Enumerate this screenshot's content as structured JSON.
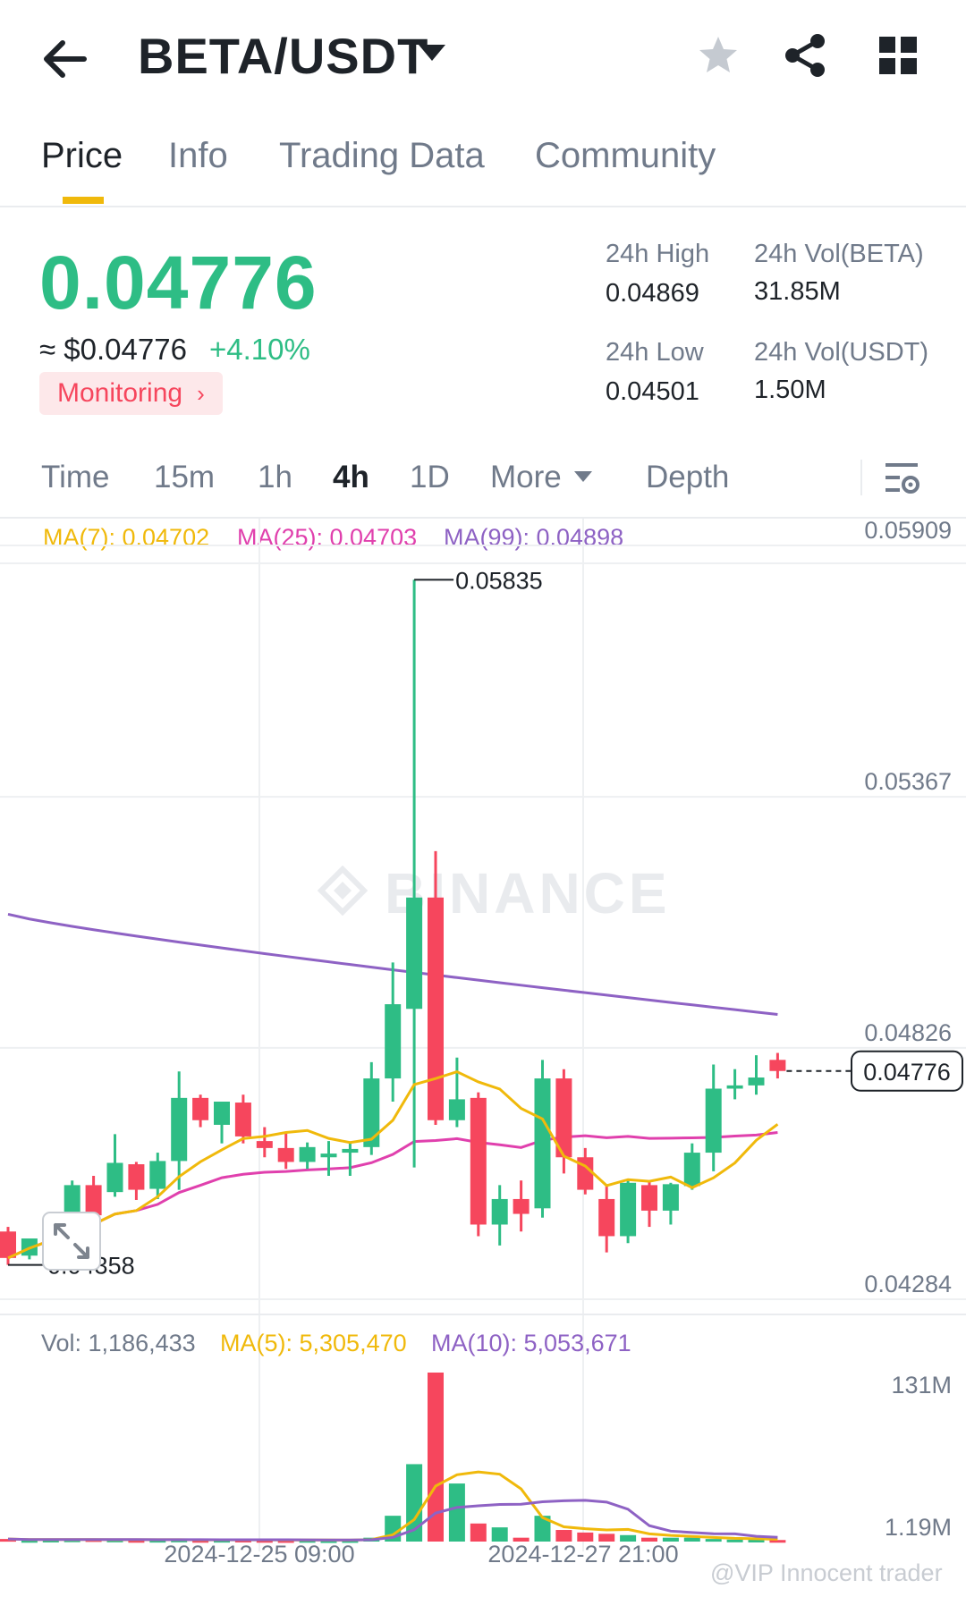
{
  "header": {
    "pair": "BETA/USDT",
    "icons": [
      "back-arrow-icon",
      "caret-down-icon",
      "star-icon",
      "share-icon",
      "grid-icon"
    ]
  },
  "tabs": [
    {
      "label": "Price",
      "active": true
    },
    {
      "label": "Info",
      "active": false
    },
    {
      "label": "Trading Data",
      "active": false
    },
    {
      "label": "Community",
      "active": false
    }
  ],
  "price": {
    "last": "0.04776",
    "usd": "≈ $0.04776",
    "change": "+4.10%",
    "badge": "Monitoring",
    "color_up": "#2ebd85",
    "color_down": "#f6465d"
  },
  "stats": {
    "high_label": "24h High",
    "high_value": "0.04869",
    "low_label": "24h Low",
    "low_value": "0.04501",
    "vol_beta_label": "24h Vol(BETA)",
    "vol_beta_value": "31.85M",
    "vol_usdt_label": "24h Vol(USDT)",
    "vol_usdt_value": "1.50M"
  },
  "intervals": [
    {
      "label": "Time",
      "active": false
    },
    {
      "label": "15m",
      "active": false
    },
    {
      "label": "1h",
      "active": false
    },
    {
      "label": "4h",
      "active": true
    },
    {
      "label": "1D",
      "active": false
    },
    {
      "label": "More",
      "active": false
    },
    {
      "label": "Depth",
      "active": false
    }
  ],
  "ma_legend": {
    "ma7": "MA(7): 0.04702",
    "ma25": "MA(25): 0.04703",
    "ma99": "MA(99): 0.04898",
    "ma7_color": "#f0b90b",
    "ma25_color": "#e040ad",
    "ma99_color": "#8e62c4"
  },
  "vol_legend": {
    "vol": "Vol: 1,186,433",
    "ma5": "MA(5): 5,305,470",
    "ma10": "MA(10): 5,053,671"
  },
  "watermark": "BINANCE",
  "footer_credit": "@VIP Innocent trader",
  "chart_data": {
    "type": "candlestick",
    "interval": "4h",
    "price_axis": {
      "ticks": [
        "0.05909",
        "0.05367",
        "0.04826",
        "0.04284"
      ],
      "ylim": [
        0.04284,
        0.05909
      ]
    },
    "volume_axis": {
      "ticks": [
        "131M",
        "1.19M"
      ]
    },
    "x_ticks": [
      "2024-12-25 09:00",
      "2024-12-27 21:00"
    ],
    "annotations": {
      "max": "0.05835",
      "min": "0.04358",
      "last": "0.04776"
    },
    "candles": [
      {
        "o": 0.0443,
        "h": 0.0444,
        "l": 0.04358,
        "c": 0.04373
      },
      {
        "o": 0.04378,
        "h": 0.0441,
        "l": 0.0437,
        "c": 0.04415
      },
      {
        "o": 0.04412,
        "h": 0.0444,
        "l": 0.04395,
        "c": 0.04445
      },
      {
        "o": 0.04445,
        "h": 0.0454,
        "l": 0.0441,
        "c": 0.0453
      },
      {
        "o": 0.0453,
        "h": 0.0455,
        "l": 0.0446,
        "c": 0.04465
      },
      {
        "o": 0.04515,
        "h": 0.0464,
        "l": 0.04505,
        "c": 0.04578
      },
      {
        "o": 0.04575,
        "h": 0.0458,
        "l": 0.04498,
        "c": 0.0452
      },
      {
        "o": 0.04522,
        "h": 0.046,
        "l": 0.045,
        "c": 0.04582
      },
      {
        "o": 0.04582,
        "h": 0.04775,
        "l": 0.0452,
        "c": 0.04718
      },
      {
        "o": 0.04718,
        "h": 0.04725,
        "l": 0.04655,
        "c": 0.0467
      },
      {
        "o": 0.0466,
        "h": 0.0471,
        "l": 0.0462,
        "c": 0.0471
      },
      {
        "o": 0.04708,
        "h": 0.04725,
        "l": 0.0462,
        "c": 0.04635
      },
      {
        "o": 0.04625,
        "h": 0.04655,
        "l": 0.0459,
        "c": 0.0461
      },
      {
        "o": 0.0461,
        "h": 0.04645,
        "l": 0.04565,
        "c": 0.0458
      },
      {
        "o": 0.0458,
        "h": 0.04622,
        "l": 0.04565,
        "c": 0.04612
      },
      {
        "o": 0.0459,
        "h": 0.04625,
        "l": 0.0455,
        "c": 0.04598
      },
      {
        "o": 0.046,
        "h": 0.0462,
        "l": 0.0455,
        "c": 0.04608
      },
      {
        "o": 0.04612,
        "h": 0.04795,
        "l": 0.04595,
        "c": 0.0476
      },
      {
        "o": 0.0476,
        "h": 0.0501,
        "l": 0.0471,
        "c": 0.0492
      },
      {
        "o": 0.0491,
        "h": 0.05835,
        "l": 0.04568,
        "c": 0.0515
      },
      {
        "o": 0.0515,
        "h": 0.0525,
        "l": 0.0466,
        "c": 0.0467
      },
      {
        "o": 0.0467,
        "h": 0.04805,
        "l": 0.04655,
        "c": 0.04715
      },
      {
        "o": 0.04718,
        "h": 0.0473,
        "l": 0.0442,
        "c": 0.04445
      },
      {
        "o": 0.04445,
        "h": 0.0453,
        "l": 0.044,
        "c": 0.045
      },
      {
        "o": 0.045,
        "h": 0.0454,
        "l": 0.0443,
        "c": 0.04468
      },
      {
        "o": 0.0448,
        "h": 0.048,
        "l": 0.0446,
        "c": 0.0476
      },
      {
        "o": 0.0476,
        "h": 0.0478,
        "l": 0.04555,
        "c": 0.0459
      },
      {
        "o": 0.0459,
        "h": 0.0461,
        "l": 0.0451,
        "c": 0.0452
      },
      {
        "o": 0.045,
        "h": 0.0453,
        "l": 0.04385,
        "c": 0.0442
      },
      {
        "o": 0.0442,
        "h": 0.0454,
        "l": 0.04405,
        "c": 0.04535
      },
      {
        "o": 0.0453,
        "h": 0.0454,
        "l": 0.0444,
        "c": 0.04475
      },
      {
        "o": 0.04475,
        "h": 0.04535,
        "l": 0.04445,
        "c": 0.04532
      },
      {
        "o": 0.04528,
        "h": 0.0462,
        "l": 0.0452,
        "c": 0.046
      },
      {
        "o": 0.046,
        "h": 0.0479,
        "l": 0.0456,
        "c": 0.04738
      },
      {
        "o": 0.04738,
        "h": 0.0478,
        "l": 0.04715,
        "c": 0.04745
      },
      {
        "o": 0.04745,
        "h": 0.0481,
        "l": 0.04725,
        "c": 0.04762
      },
      {
        "o": 0.048,
        "h": 0.04815,
        "l": 0.0476,
        "c": 0.04776
      }
    ],
    "volumes": [
      2.0,
      1.2,
      1.4,
      1.6,
      1.8,
      1.5,
      1.2,
      1.3,
      1.5,
      1.2,
      1.3,
      1.4,
      1.2,
      1.1,
      1.2,
      1.0,
      1.1,
      3.0,
      20,
      60,
      131,
      45,
      14,
      11,
      3,
      20,
      9,
      7,
      6,
      5,
      3,
      3,
      3,
      2,
      1.5,
      1.4,
      1.2
    ],
    "ma99_endpoints": {
      "start": 0.05114,
      "end": 0.04898
    }
  }
}
